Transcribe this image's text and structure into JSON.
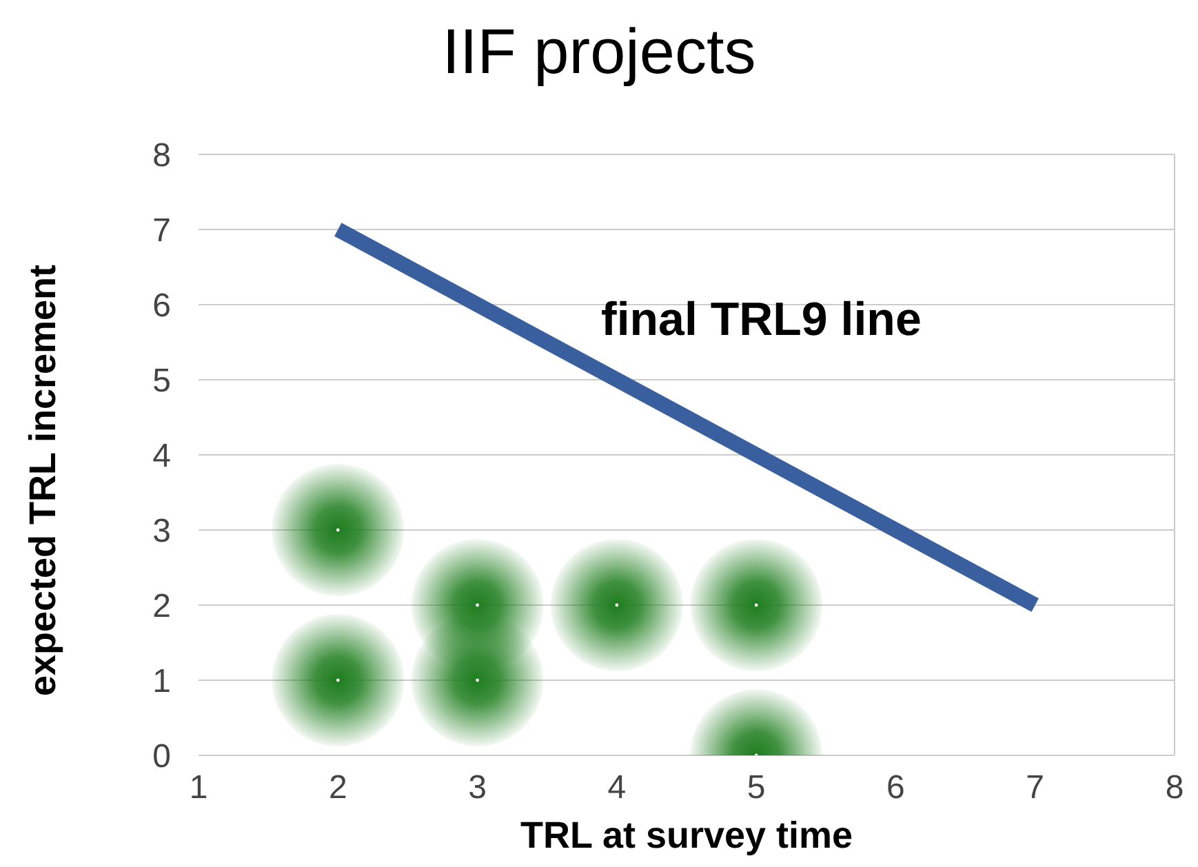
{
  "chart_data": {
    "type": "scatter",
    "title": "IIF projects",
    "xlabel": "TRL at survey time",
    "ylabel": "expected TRL increment",
    "xlim": [
      1,
      8
    ],
    "xticks": [
      1,
      2,
      3,
      4,
      5,
      6,
      7,
      8
    ],
    "ylim": [
      0,
      8
    ],
    "yticks": [
      0,
      1,
      2,
      3,
      4,
      5,
      6,
      7,
      8
    ],
    "grid": "y",
    "series": [
      {
        "marker": "circle",
        "color": "#1e7d1e",
        "x": [
          2,
          2,
          3,
          3,
          4,
          5,
          5
        ],
        "values": [
          3,
          1,
          2,
          1,
          2,
          2,
          0
        ]
      },
      {
        "type": "line",
        "color": "#3a5f9e",
        "x": [
          2,
          7
        ],
        "values": [
          7,
          2
        ]
      }
    ],
    "annotations": [
      "final TRL9 line"
    ]
  }
}
